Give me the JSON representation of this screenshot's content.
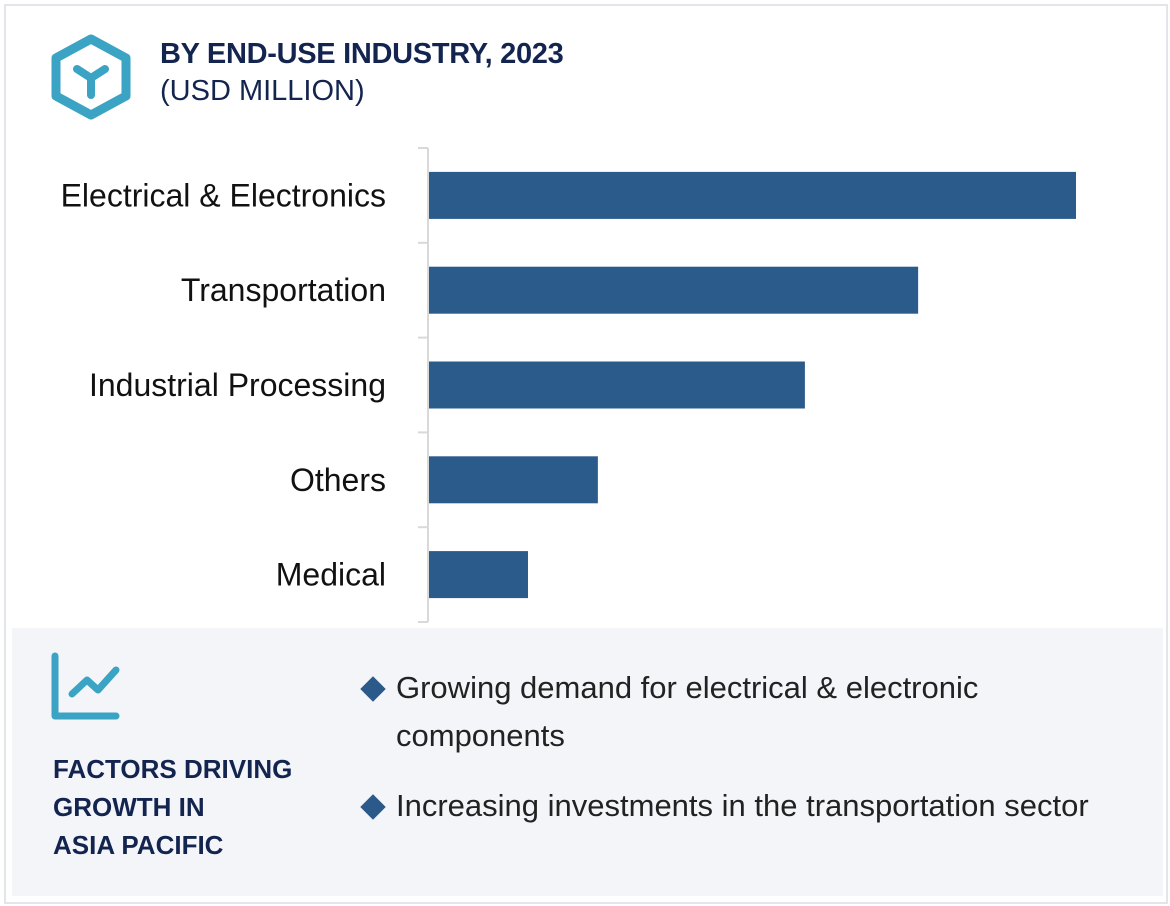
{
  "header": {
    "icon": "hexagon-y-icon",
    "title": "BY END-USE INDUSTRY, 2023",
    "subtitle": "(USD MILLION)"
  },
  "colors": {
    "bar": "#2b5b8a",
    "accent": "#3ba3c4",
    "heading": "#13244f",
    "panel_bg": "#f3f5f9",
    "axis": "#d9d9d9"
  },
  "chart_data": {
    "type": "bar",
    "orientation": "horizontal",
    "title": "BY END-USE INDUSTRY, 2023",
    "subtitle": "(USD MILLION)",
    "categories": [
      "Electrical & Electronics",
      "Transportation",
      "Industrial Processing",
      "Others",
      "Medical"
    ],
    "values": [
      100,
      75.6,
      58.1,
      26.1,
      15.3
    ],
    "value_note": "relative bar lengths (no value axis shown); largest = 100",
    "xlabel": "",
    "ylabel": "",
    "xlim": [
      0,
      100
    ],
    "grid": false,
    "legend": "none"
  },
  "panel": {
    "icon": "trend-chart-icon",
    "heading_lines": [
      "FACTORS DRIVING",
      "GROWTH IN",
      "ASIA PACIFIC"
    ],
    "bullets": [
      "Growing demand for electrical & electronic components",
      "Increasing investments in the transportation sector"
    ]
  }
}
